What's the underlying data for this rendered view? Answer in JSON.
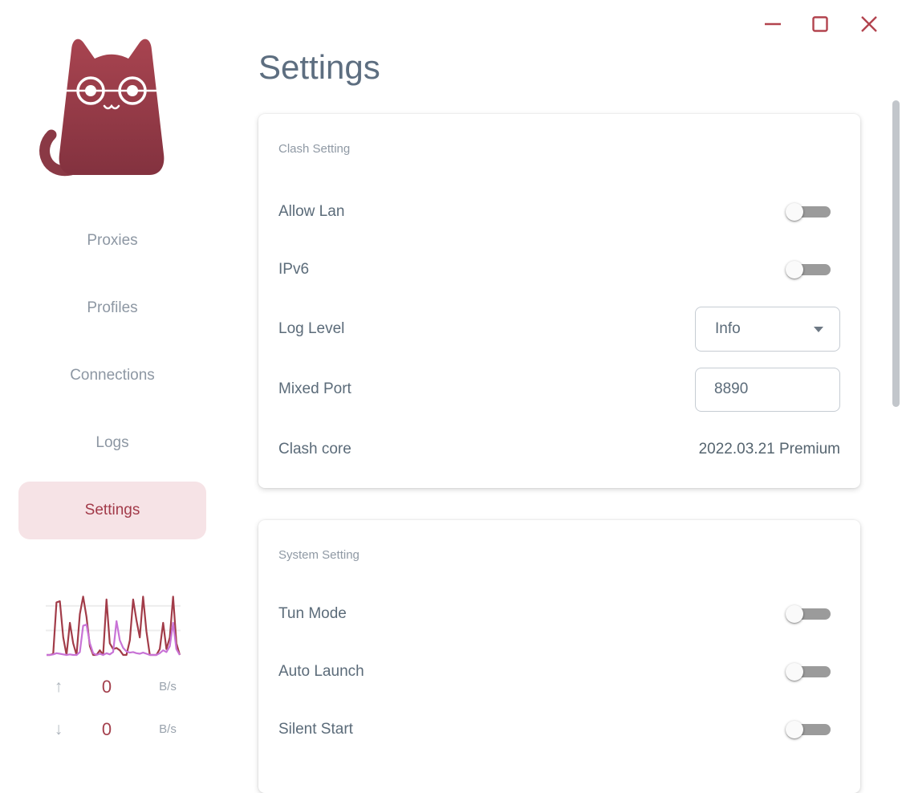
{
  "colors": {
    "accent": "#a8434f",
    "accent_bg": "#f6e3e6",
    "text_primary": "#5b6b79",
    "text_muted": "#8f99a4",
    "control_red": "#b2434e",
    "switch_track": "#9b9b9b",
    "scrollbar": "#c2c6cb"
  },
  "icons": {
    "arrow_up": "↑",
    "arrow_down": "↓",
    "caret_down": "▾",
    "minimize": "–",
    "maximize": "□",
    "close": "✕"
  },
  "header": {
    "title": "Settings"
  },
  "sidebar": {
    "items": [
      {
        "label": "Proxies",
        "active": false
      },
      {
        "label": "Profiles",
        "active": false
      },
      {
        "label": "Connections",
        "active": false
      },
      {
        "label": "Logs",
        "active": false
      },
      {
        "label": "Settings",
        "active": true
      }
    ],
    "traffic": {
      "up": {
        "value": "0",
        "unit": "B/s"
      },
      "down": {
        "value": "0",
        "unit": "B/s"
      }
    }
  },
  "settings_card": {
    "title": "Clash Setting",
    "rows": {
      "allow_lan": {
        "label": "Allow Lan",
        "control": "switch",
        "value": false
      },
      "ipv6": {
        "label": "IPv6",
        "control": "switch",
        "value": false
      },
      "log_level": {
        "label": "Log Level",
        "control": "select",
        "value": "Info"
      },
      "mixed_port": {
        "label": "Mixed Port",
        "control": "input",
        "value": "8890"
      },
      "clash_core": {
        "label": "Clash core",
        "value": "2022.03.21 Premium"
      }
    }
  },
  "system_card": {
    "title": "System Setting",
    "rows": {
      "tun_mode": {
        "label": "Tun Mode",
        "control": "switch",
        "value": false
      },
      "auto_launch": {
        "label": "Auto Launch",
        "control": "switch",
        "value": false
      },
      "silent_start": {
        "label": "Silent Start",
        "control": "switch",
        "value": false
      }
    }
  },
  "chart_data": {
    "type": "line",
    "title": "traffic-mini-graph",
    "x_count": 41,
    "ylim": [
      0,
      110
    ],
    "gridlines": [
      42,
      84
    ],
    "gridline_color": "#ededed",
    "legend": "none",
    "axes_visible": false,
    "series": [
      {
        "name": "up",
        "color": "#a23c49",
        "values": [
          0,
          0,
          2,
          90,
          92,
          30,
          0,
          55,
          20,
          0,
          70,
          100,
          65,
          15,
          0,
          0,
          8,
          0,
          95,
          20,
          10,
          12,
          8,
          0,
          0,
          25,
          95,
          60,
          30,
          100,
          40,
          0,
          0,
          0,
          10,
          55,
          10,
          30,
          100,
          20,
          0
        ]
      },
      {
        "name": "down",
        "color": "#c873d6",
        "values": [
          0,
          0,
          1,
          3,
          2,
          1,
          0,
          1,
          0,
          0,
          5,
          50,
          52,
          20,
          3,
          0,
          2,
          0,
          3,
          1,
          5,
          58,
          25,
          12,
          6,
          4,
          5,
          3,
          2,
          4,
          2,
          0,
          0,
          0,
          3,
          8,
          5,
          15,
          55,
          10,
          0
        ]
      }
    ]
  }
}
